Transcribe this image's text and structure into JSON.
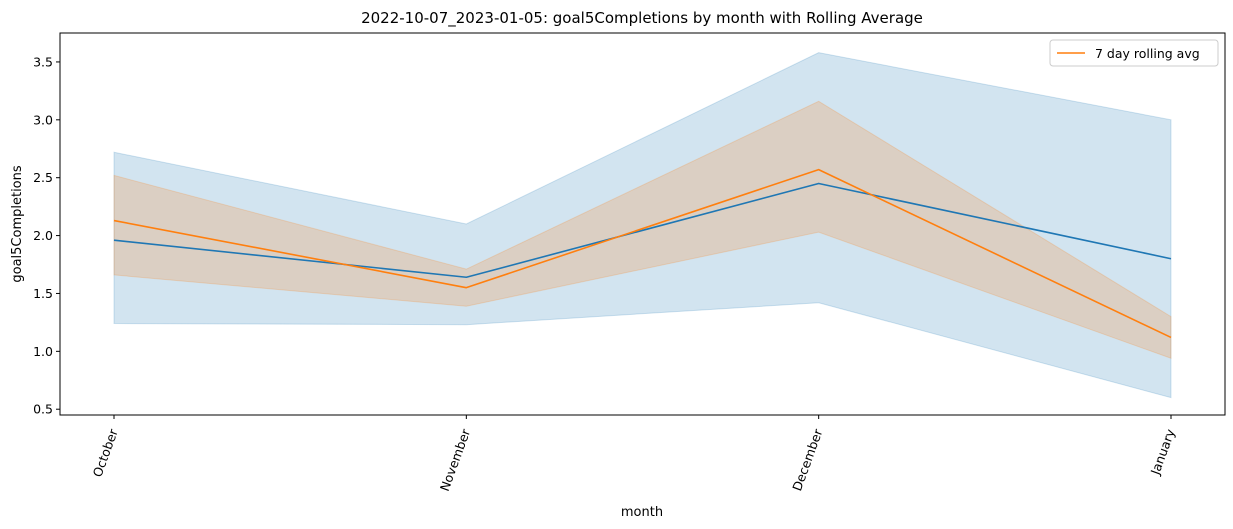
{
  "chart_data": {
    "type": "line",
    "title": "2022-10-07_2023-01-05: goal5Completions by month with Rolling Average",
    "xlabel": "month",
    "ylabel": "goal5Completions",
    "categories": [
      "October",
      "November",
      "December",
      "January"
    ],
    "ylim": [
      0.45,
      3.75
    ],
    "yticks": [
      "0.5",
      "1.0",
      "1.5",
      "2.0",
      "2.5",
      "3.0",
      "3.5"
    ],
    "grid": false,
    "legend_position": "top-right",
    "series": [
      {
        "values": [
          1.96,
          1.64,
          2.45,
          1.8
        ],
        "ci_lower": [
          1.24,
          1.23,
          1.42,
          0.6
        ],
        "ci_upper": [
          2.72,
          2.1,
          3.58,
          3.0
        ],
        "color": "#1f77b4"
      },
      {
        "name": "7 day rolling avg",
        "values": [
          2.13,
          1.55,
          2.57,
          1.12
        ],
        "ci_lower": [
          1.66,
          1.39,
          2.03,
          0.94
        ],
        "ci_upper": [
          2.52,
          1.71,
          3.16,
          1.3
        ],
        "color": "#ff7f0e"
      }
    ]
  }
}
